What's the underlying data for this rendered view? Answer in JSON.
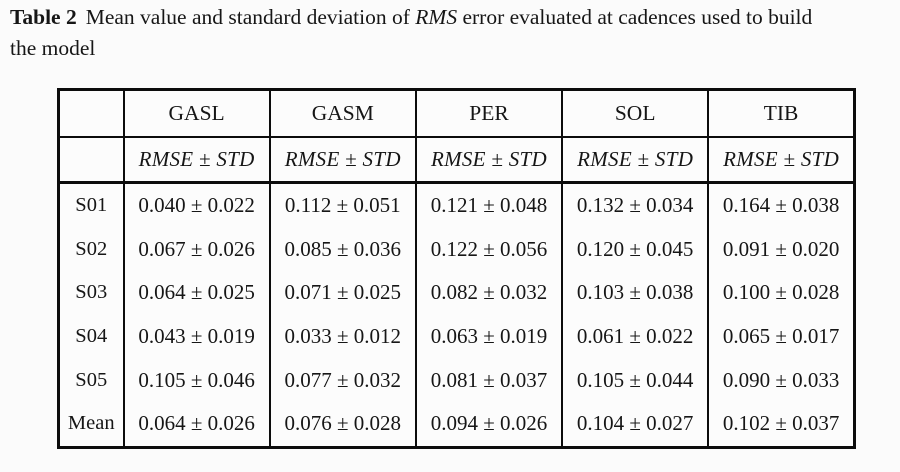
{
  "caption": {
    "label": "Table 2",
    "line1_before_italic": "Mean value and standard deviation of ",
    "italic_term": "RMS",
    "line1_after_italic": " error evaluated at cadences used to build",
    "line2": "the model"
  },
  "table": {
    "columns": [
      "GASL",
      "GASM",
      "PER",
      "SOL",
      "TIB"
    ],
    "subheader": "RMSE ± STD",
    "rows": [
      {
        "label": "S01",
        "values": [
          "0.040 ± 0.022",
          "0.112 ± 0.051",
          "0.121 ± 0.048",
          "0.132 ± 0.034",
          "0.164 ± 0.038"
        ]
      },
      {
        "label": "S02",
        "values": [
          "0.067 ± 0.026",
          "0.085 ± 0.036",
          "0.122 ± 0.056",
          "0.120 ± 0.045",
          "0.091 ± 0.020"
        ]
      },
      {
        "label": "S03",
        "values": [
          "0.064 ± 0.025",
          "0.071 ± 0.025",
          "0.082 ± 0.032",
          "0.103 ± 0.038",
          "0.100 ± 0.028"
        ]
      },
      {
        "label": "S04",
        "values": [
          "0.043 ± 0.019",
          "0.033 ± 0.012",
          "0.063 ± 0.019",
          "0.061 ± 0.022",
          "0.065 ± 0.017"
        ]
      },
      {
        "label": "S05",
        "values": [
          "0.105 ± 0.046",
          "0.077 ± 0.032",
          "0.081 ± 0.037",
          "0.105 ± 0.044",
          "0.090 ± 0.033"
        ]
      },
      {
        "label": "Mean",
        "values": [
          "0.064 ± 0.026",
          "0.076 ± 0.028",
          "0.094 ± 0.026",
          "0.104 ± 0.027",
          "0.102 ± 0.037"
        ]
      }
    ]
  },
  "colors": {
    "border": "#0c0c0c",
    "text": "#161616",
    "background": "#fbfbfb"
  }
}
